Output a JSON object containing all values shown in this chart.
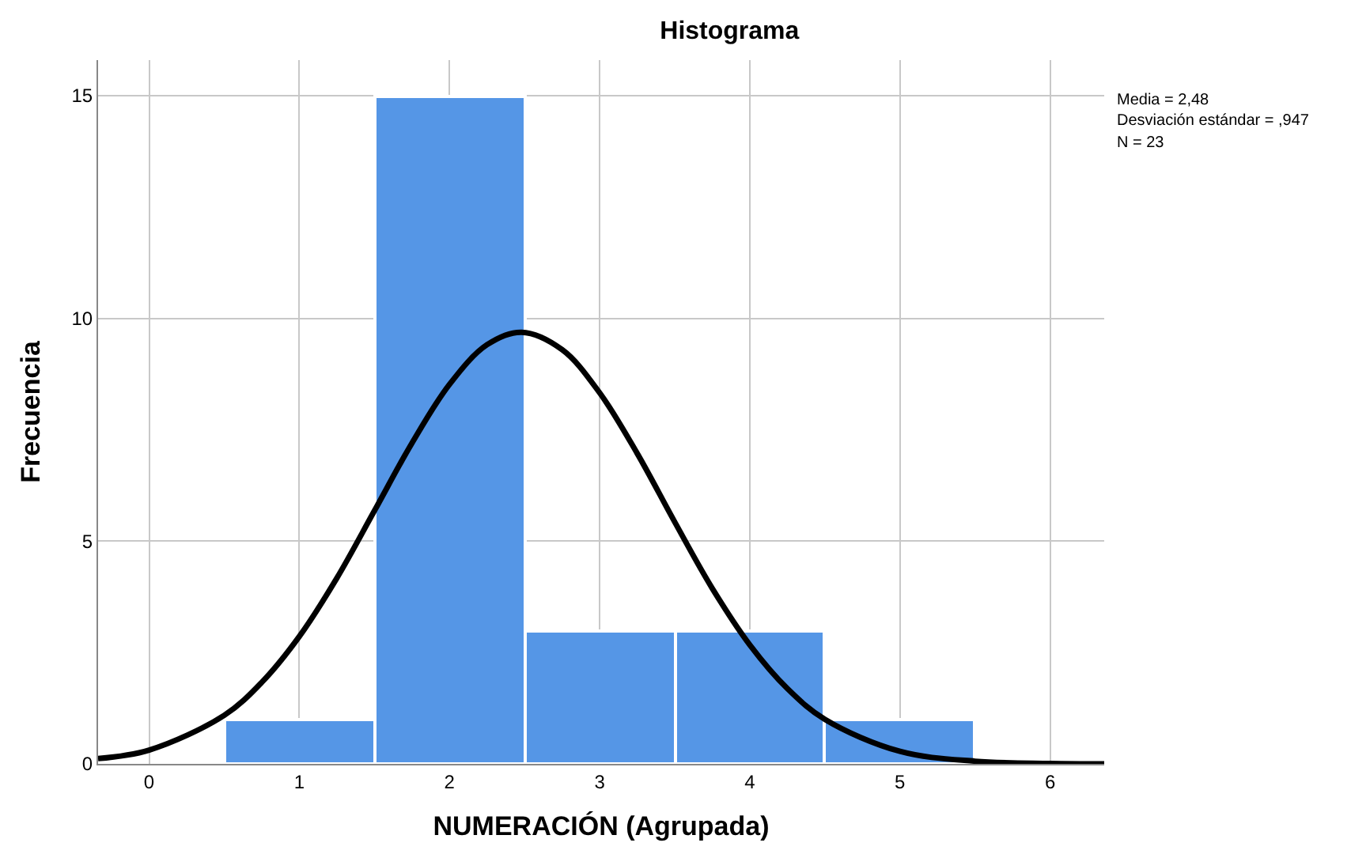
{
  "chart_data": {
    "type": "histogram",
    "title": "Histograma",
    "xlabel": "NUMERACIÓN (Agrupada)",
    "ylabel": "Frecuencia",
    "annotations": [
      "Media = 2,48",
      "Desviación estándar = ,947",
      "N = 23"
    ],
    "series": [
      {
        "bins": [
          0.5,
          1.5,
          2.5,
          3.5,
          4.5,
          5.5
        ],
        "values": [
          1,
          15,
          3,
          3,
          1
        ],
        "color": "#5596e6"
      },
      {
        "type": "line",
        "color": "#000000",
        "x": [
          -0.34,
          0,
          0.5,
          0.75,
          1,
          1.25,
          1.5,
          1.75,
          2,
          2.25,
          2.48,
          2.75,
          3,
          3.25,
          3.5,
          3.75,
          4,
          4.25,
          4.5,
          5,
          5.5,
          6,
          6.36
        ],
        "values": [
          0.12,
          0.31,
          1.09,
          1.83,
          2.86,
          4.17,
          5.68,
          7.2,
          8.52,
          9.41,
          9.69,
          9.3,
          8.33,
          6.97,
          5.43,
          3.94,
          2.67,
          1.69,
          1.0,
          0.28,
          0.06,
          0.01,
          0.0
        ]
      }
    ],
    "xlim": [
      -0.34,
      6.36
    ],
    "ylim": [
      0,
      15.8
    ],
    "xticks": [
      0,
      1,
      2,
      3,
      4,
      5,
      6
    ],
    "yticks": [
      0,
      5,
      10,
      15
    ],
    "grid": true,
    "marker": "none",
    "line_style": "solid"
  }
}
